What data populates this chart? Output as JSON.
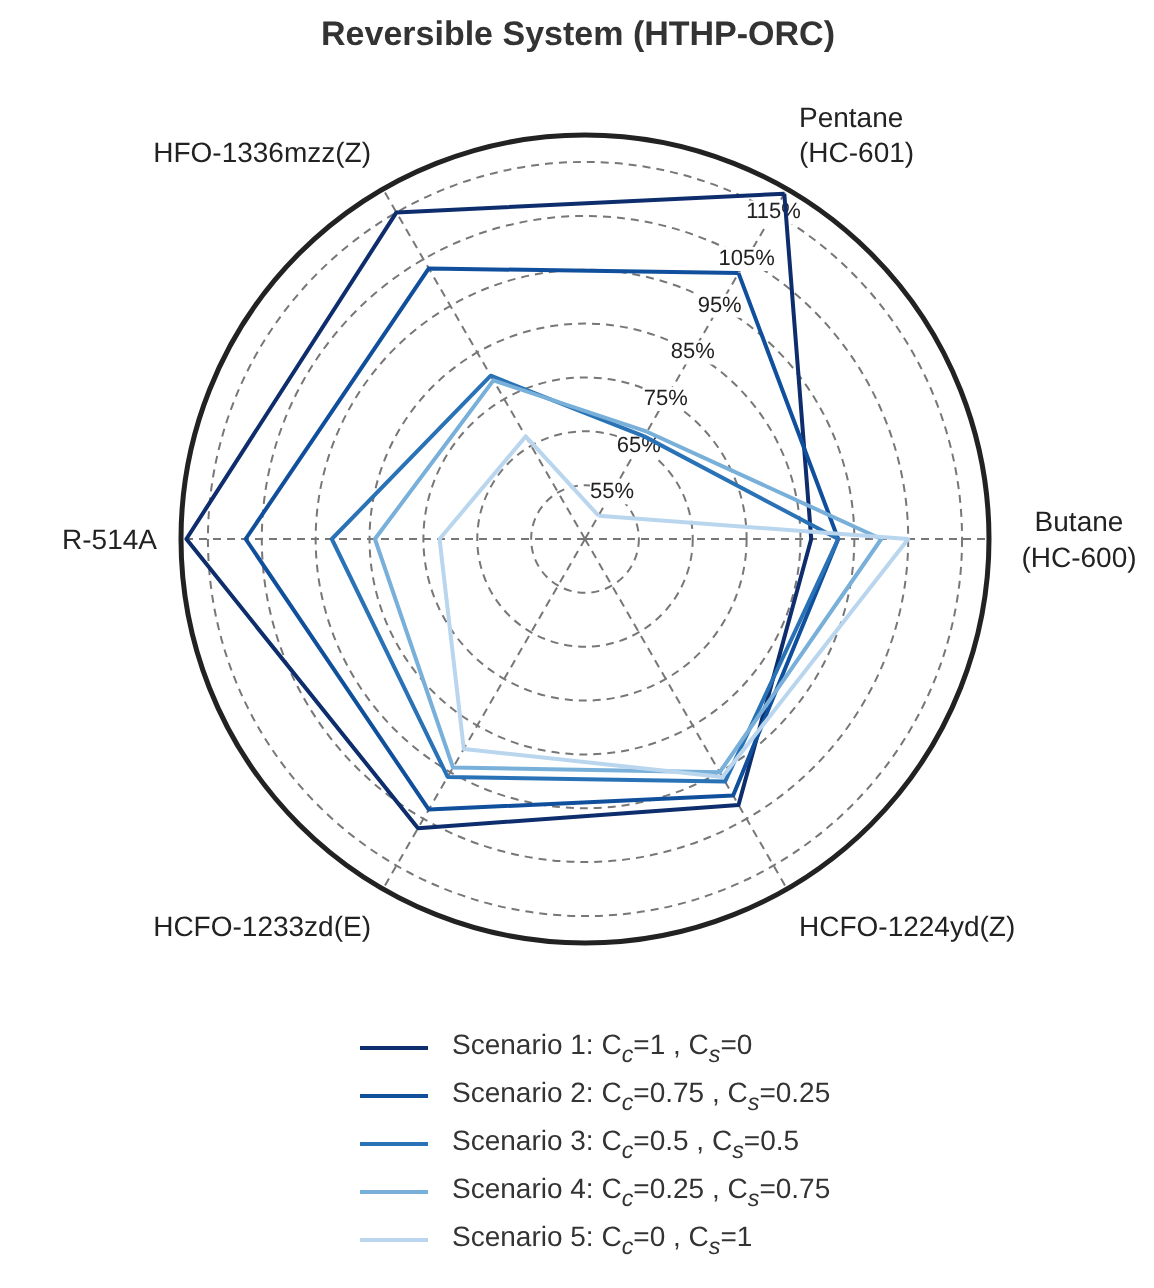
{
  "chart_data": {
    "type": "radar",
    "title": "Reversible System (HTHP-ORC)",
    "categories": [
      "Pentane\n(HC-601)",
      "Butane\n(HC-600)",
      "HCFO-1224yd(Z)",
      "HCFO-1233zd(E)",
      "R-514A",
      "HFO-1336mzz(Z)"
    ],
    "series": [
      {
        "name": "Scenario 1: C$_{c}$=1 , C$_{s}$=0",
        "color": "#0d2d6c",
        "values": [
          119,
          87,
          102,
          107,
          119,
          115
        ]
      },
      {
        "name": "Scenario 2: C$_{c}$=0.75 , C$_{s}$=0.25",
        "color": "#104f9c",
        "values": [
          102,
          92,
          100,
          103,
          108,
          103
        ]
      },
      {
        "name": "Scenario 3: C$_{c}$=0.5 , C$_{s}$=0.5",
        "color": "#2a72b6",
        "values": [
          67,
          92,
          97,
          96,
          92,
          80
        ]
      },
      {
        "name": "Scenario 4: C$_{c}$=0.25 , C$_{s}$=0.75",
        "color": "#78b0da",
        "values": [
          68,
          100,
          95,
          94,
          84,
          79
        ]
      },
      {
        "name": "Scenario 5: C$_{c}$=0 , C$_{s}$=1",
        "color": "#b9d6ee",
        "values": [
          50,
          105,
          96,
          90,
          72,
          67
        ]
      }
    ],
    "ylim": [
      45,
      120
    ],
    "yticks": [
      {
        "value": 55,
        "label": "55%"
      },
      {
        "value": 65,
        "label": "65%"
      },
      {
        "value": 75,
        "label": "75%"
      },
      {
        "value": 85,
        "label": "85%"
      },
      {
        "value": 95,
        "label": "95%"
      },
      {
        "value": 105,
        "label": "105%"
      },
      {
        "value": 115,
        "label": "115%"
      }
    ],
    "grid": true,
    "legend": "bottom"
  }
}
